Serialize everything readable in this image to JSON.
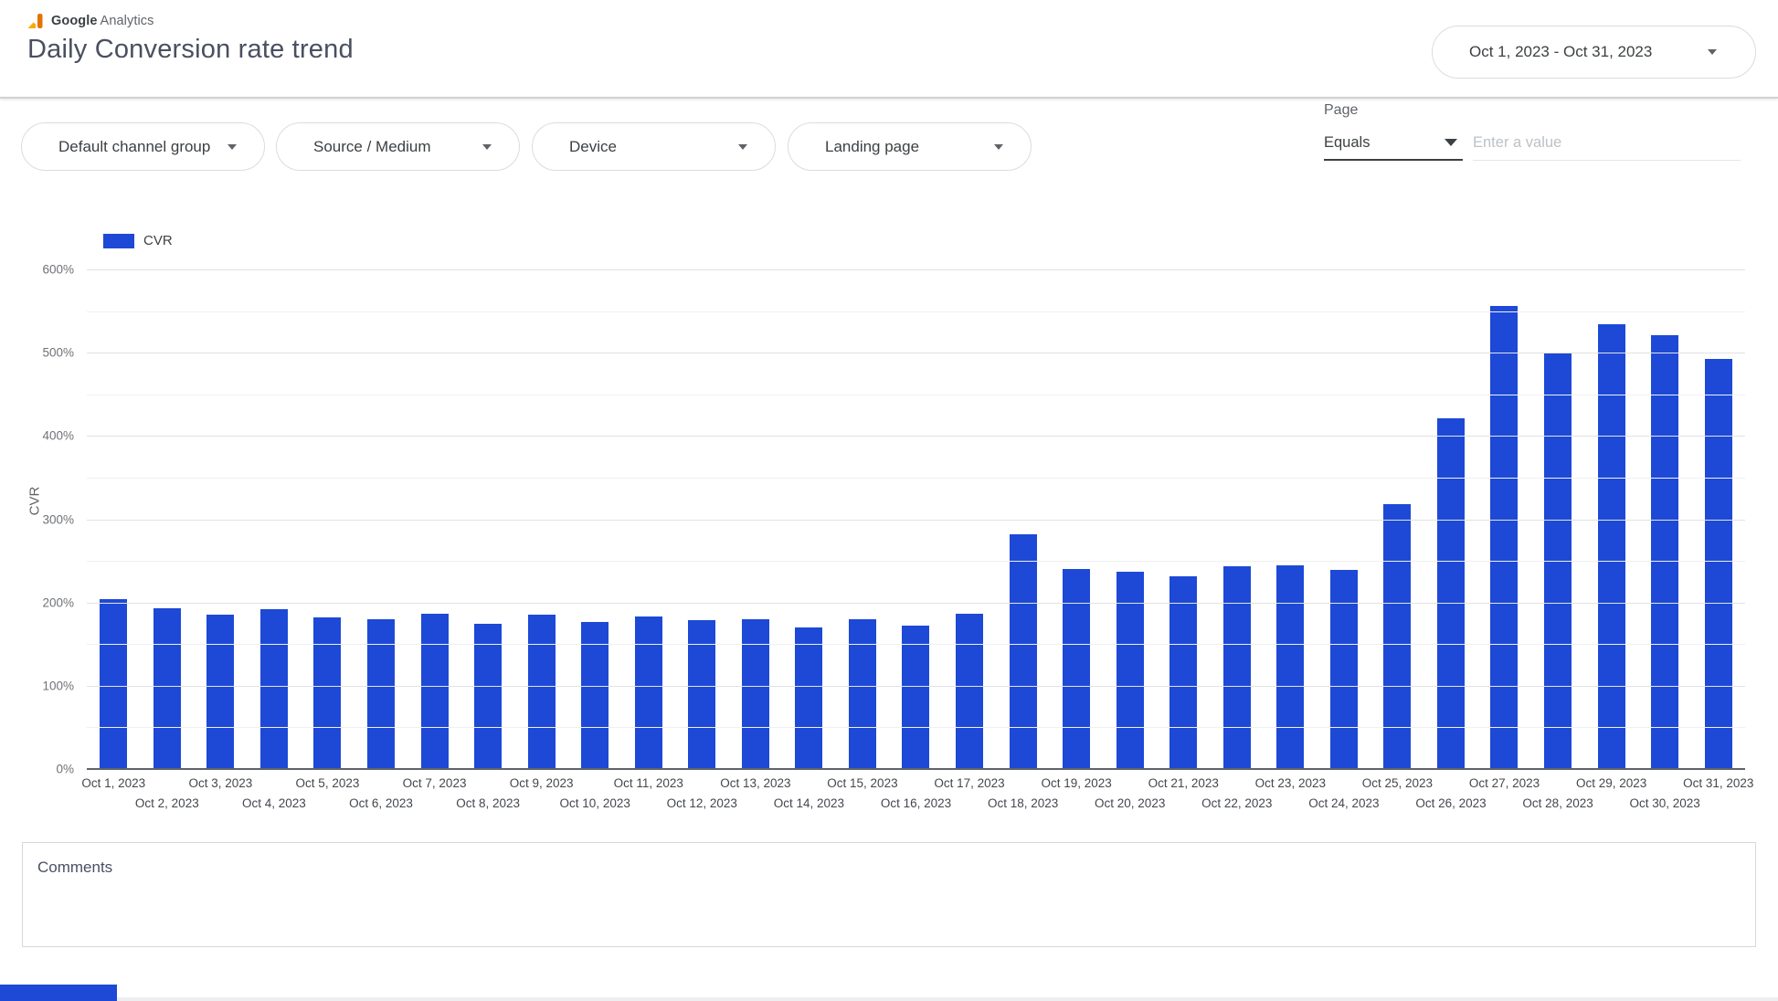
{
  "header": {
    "logo": {
      "brand": "Google",
      "product": "Analytics",
      "icon": "google-analytics-logo-icon"
    },
    "title": "Daily Conversion rate trend",
    "date_range": {
      "label": "Oct 1, 2023 - Oct 31, 2023",
      "icon": "dropdown-caret-icon"
    }
  },
  "filters": {
    "pills": [
      {
        "label": "Default channel group",
        "icon": "dropdown-caret-icon"
      },
      {
        "label": "Source / Medium",
        "icon": "dropdown-caret-icon"
      },
      {
        "label": "Device",
        "icon": "dropdown-caret-icon"
      },
      {
        "label": "Landing page",
        "icon": "dropdown-caret-icon"
      }
    ],
    "page_filter": {
      "label": "Page",
      "operator": "Equals",
      "operator_icon": "dropdown-caret-icon",
      "value_placeholder": "Enter a value"
    }
  },
  "chart_data": {
    "type": "bar",
    "title": "",
    "legend": [
      {
        "label": "CVR",
        "color": "#1d49d6"
      }
    ],
    "ylabel": "CVR",
    "xlabel": "",
    "ylim": [
      0,
      600
    ],
    "grid": "on",
    "legend_position": "top-left",
    "y_major_ticks": [
      "600%",
      "500%",
      "400%",
      "300%",
      "200%",
      "100%",
      "0%"
    ],
    "bar_color": "#1d49d6",
    "categories": [
      "Oct 1, 2023",
      "Oct 2, 2023",
      "Oct 3, 2023",
      "Oct 4, 2023",
      "Oct 5, 2023",
      "Oct 6, 2023",
      "Oct 7, 2023",
      "Oct 8, 2023",
      "Oct 9, 2023",
      "Oct 10, 2023",
      "Oct 11, 2023",
      "Oct 12, 2023",
      "Oct 13, 2023",
      "Oct 14, 2023",
      "Oct 15, 2023",
      "Oct 16, 2023",
      "Oct 17, 2023",
      "Oct 18, 2023",
      "Oct 19, 2023",
      "Oct 20, 2023",
      "Oct 21, 2023",
      "Oct 22, 2023",
      "Oct 23, 2023",
      "Oct 24, 2023",
      "Oct 25, 2023",
      "Oct 26, 2023",
      "Oct 27, 2023",
      "Oct 28, 2023",
      "Oct 29, 2023",
      "Oct 30, 2023",
      "Oct 31, 2023"
    ],
    "values": [
      204,
      193,
      185,
      192,
      182,
      180,
      187,
      174,
      185,
      177,
      183,
      179,
      180,
      170,
      180,
      172,
      186,
      282,
      240,
      237,
      232,
      243,
      245,
      239,
      318,
      421,
      556,
      500,
      534,
      521,
      492
    ]
  },
  "comments": {
    "label": "Comments"
  },
  "footer": {
    "accent_color": "#1d49d6"
  }
}
